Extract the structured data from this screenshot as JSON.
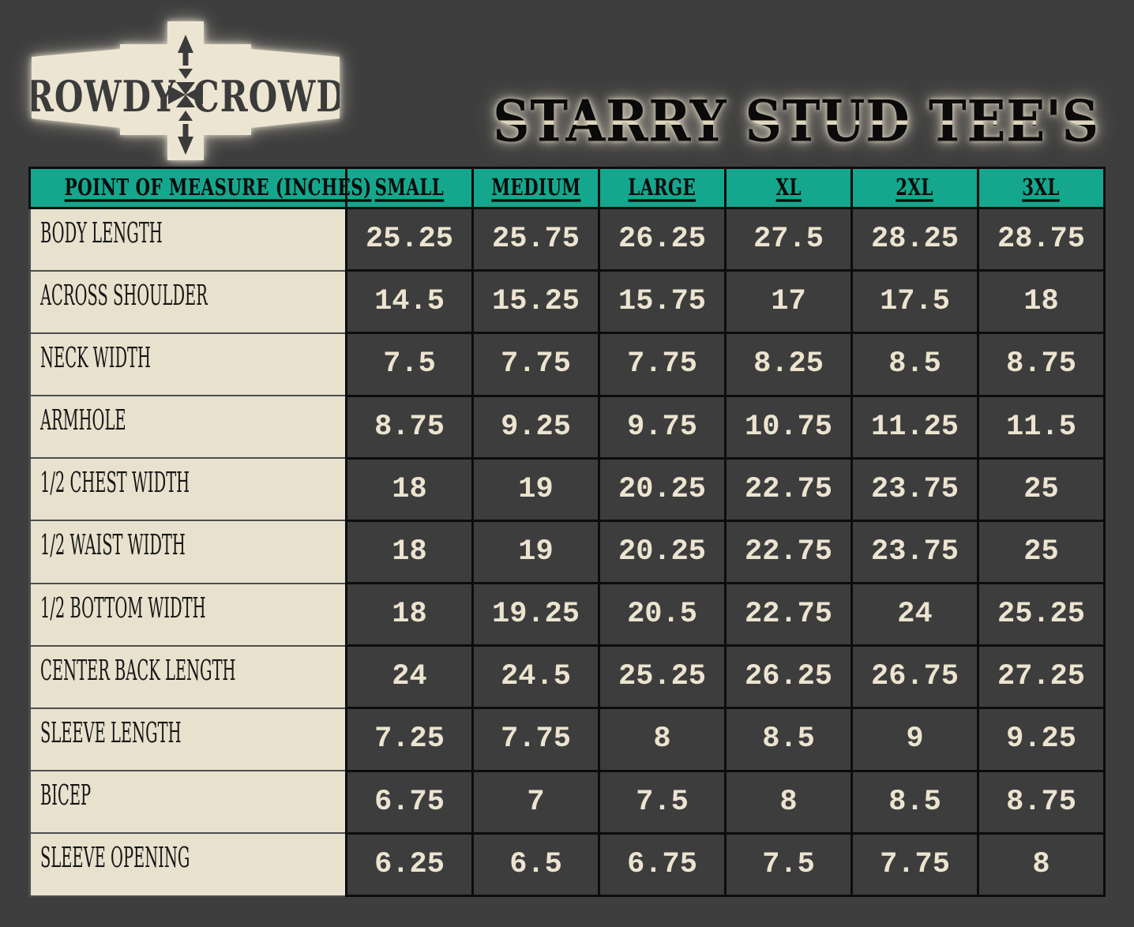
{
  "logo": {
    "left_text": "ROWDY",
    "right_text": "CROWD",
    "badge_color": "#ece5d1",
    "emblem_color": "#3b3b3b"
  },
  "title": {
    "text": "STARRY STUD TEE'S"
  },
  "table": {
    "columns": [
      "POINT OF MEASURE (INCHES)",
      "SMALL",
      "MEDIUM",
      "LARGE",
      "XL",
      "2XL",
      "3XL"
    ],
    "rows": [
      {
        "label": "BODY LENGTH",
        "values": [
          "25.25",
          "25.75",
          "26.25",
          "27.5",
          "28.25",
          "28.75"
        ]
      },
      {
        "label": "ACROSS SHOULDER",
        "values": [
          "14.5",
          "15.25",
          "15.75",
          "17",
          "17.5",
          "18"
        ]
      },
      {
        "label": "NECK WIDTH",
        "values": [
          "7.5",
          "7.75",
          "7.75",
          "8.25",
          "8.5",
          "8.75"
        ]
      },
      {
        "label": "ARMHOLE",
        "values": [
          "8.75",
          "9.25",
          "9.75",
          "10.75",
          "11.25",
          "11.5"
        ]
      },
      {
        "label": "1/2 CHEST WIDTH",
        "values": [
          "18",
          "19",
          "20.25",
          "22.75",
          "23.75",
          "25"
        ]
      },
      {
        "label": "1/2 WAIST WIDTH",
        "values": [
          "18",
          "19",
          "20.25",
          "22.75",
          "23.75",
          "25"
        ]
      },
      {
        "label": "1/2 BOTTOM WIDTH",
        "values": [
          "18",
          "19.25",
          "20.5",
          "22.75",
          "24",
          "25.25"
        ]
      },
      {
        "label": "CENTER BACK LENGTH",
        "values": [
          "24",
          "24.5",
          "25.25",
          "26.25",
          "26.75",
          "27.25"
        ]
      },
      {
        "label": "SLEEVE LENGTH",
        "values": [
          "7.25",
          "7.75",
          "8",
          "8.5",
          "9",
          "9.25"
        ]
      },
      {
        "label": "BICEP",
        "values": [
          "6.75",
          "7",
          "7.5",
          "8",
          "8.5",
          "8.75"
        ]
      },
      {
        "label": "SLEEVE OPENING",
        "values": [
          "6.25",
          "6.5",
          "6.75",
          "7.5",
          "7.75",
          "8"
        ]
      }
    ]
  },
  "colors": {
    "background": "#3e3e3e",
    "header_teal": "#14a78d",
    "label_cream": "#e8e1cd",
    "value_text_cream": "#ece4d0",
    "grid_black": "#0c0c0c"
  }
}
